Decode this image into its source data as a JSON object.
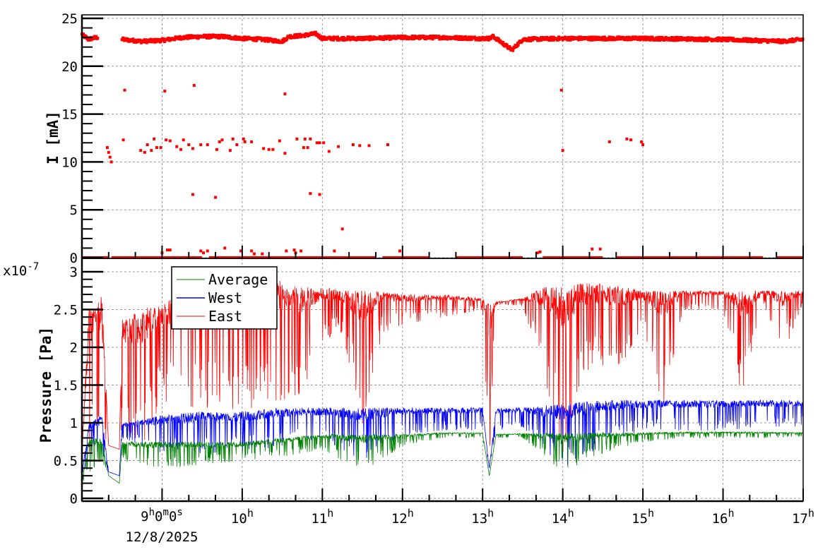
{
  "x_axis": {
    "range": [
      "8:00",
      "17:00"
    ],
    "first_label": {
      "h": "9",
      "m": "0",
      "s": "0",
      "h_unit": "h",
      "m_unit": "m",
      "s_unit": "s"
    },
    "date_label": "12/8/2025",
    "hour_labels": [
      "10",
      "11",
      "12",
      "13",
      "14",
      "15",
      "16",
      "17"
    ],
    "hour_unit": "h"
  },
  "chart_data": [
    {
      "type": "scatter",
      "ylabel": "I [mA]",
      "ylim": [
        0,
        25
      ],
      "yticks": [
        "0",
        "5",
        "10",
        "15",
        "20",
        "25"
      ],
      "grid": true,
      "color": "#ff0000",
      "main_band": [
        [
          "8:00",
          23.3
        ],
        [
          "8:05",
          22.8
        ],
        [
          "8:10",
          23.0
        ],
        [
          "8:12",
          23.0
        ],
        null,
        [
          "8:30",
          22.8
        ],
        [
          "8:45",
          22.6
        ],
        [
          "9:00",
          22.7
        ],
        [
          "9:15",
          23.0
        ],
        [
          "9:30",
          23.1
        ],
        [
          "9:45",
          23.1
        ],
        [
          "10:00",
          22.9
        ],
        [
          "10:15",
          22.8
        ],
        [
          "10:30",
          22.6
        ],
        [
          "10:35",
          23.1
        ],
        [
          "10:45",
          23.2
        ],
        [
          "10:55",
          23.4
        ],
        [
          "11:00",
          22.9
        ],
        [
          "11:30",
          22.9
        ],
        [
          "12:00",
          23.0
        ],
        [
          "12:30",
          23.0
        ],
        [
          "13:00",
          22.9
        ],
        [
          "13:05",
          22.9
        ],
        [
          "13:08",
          23.1
        ],
        [
          "13:15",
          22.4
        ],
        [
          "13:22",
          21.7
        ],
        [
          "13:30",
          22.8
        ],
        [
          "14:00",
          22.9
        ],
        [
          "15:00",
          22.9
        ],
        [
          "16:00",
          22.8
        ],
        [
          "16:45",
          22.6
        ],
        [
          "17:00",
          22.8
        ]
      ],
      "zero_segments": [
        [
          "8:00",
          "8:20"
        ],
        [
          "8:22",
          "9:30"
        ],
        [
          "9:35",
          "11:40"
        ],
        [
          "11:45",
          "12:20"
        ],
        [
          "12:40",
          "13:30"
        ],
        [
          "13:45",
          "14:30"
        ],
        [
          "14:40",
          "16:30"
        ],
        [
          "16:40",
          "17:00"
        ]
      ],
      "decay_segment": [
        [
          "8:19",
          11.5
        ],
        [
          "8:20",
          11.0
        ],
        [
          "8:21",
          10.5
        ],
        [
          "8:22",
          10.0
        ]
      ],
      "outliers": [
        [
          "8:32",
          17.5
        ],
        [
          "9:02",
          17.4
        ],
        [
          "9:24",
          18.0
        ],
        [
          "10:32",
          17.1
        ],
        [
          "13:59",
          17.5
        ],
        [
          "8:31",
          12.3
        ],
        [
          "8:44",
          11.2
        ],
        [
          "8:47",
          11.0
        ],
        [
          "8:49",
          11.8
        ],
        [
          "8:52",
          11.2
        ],
        [
          "8:54",
          12.4
        ],
        [
          "8:56",
          11.5
        ],
        [
          "8:59",
          11.5
        ],
        [
          "9:03",
          12.3
        ],
        [
          "9:06",
          12.2
        ],
        [
          "9:11",
          11.6
        ],
        [
          "9:14",
          11.3
        ],
        [
          "9:16",
          12.3
        ],
        [
          "9:20",
          11.8
        ],
        [
          "9:23",
          11.4
        ],
        [
          "9:29",
          11.8
        ],
        [
          "9:34",
          11.8
        ],
        [
          "9:41",
          11.3
        ],
        [
          "9:43",
          12.1
        ],
        [
          "9:45",
          12.3
        ],
        [
          "9:51",
          11.2
        ],
        [
          "9:53",
          12.4
        ],
        [
          "9:56",
          11.8
        ],
        [
          "10:01",
          12.4
        ],
        [
          "10:02",
          12.1
        ],
        [
          "10:07",
          12.1
        ],
        [
          "10:16",
          11.4
        ],
        [
          "10:20",
          11.3
        ],
        [
          "10:23",
          11.3
        ],
        [
          "10:28",
          12.2
        ],
        [
          "10:32",
          10.9
        ],
        [
          "10:41",
          12.4
        ],
        [
          "10:46",
          11.5
        ],
        [
          "10:47",
          12.4
        ],
        [
          "10:49",
          11.5
        ],
        [
          "10:51",
          12.4
        ],
        [
          "10:56",
          12.0
        ],
        [
          "10:58",
          12.0
        ],
        [
          "11:01",
          12.0
        ],
        [
          "11:05",
          11.1
        ],
        [
          "11:12",
          11.6
        ],
        [
          "11:23",
          11.8
        ],
        [
          "11:28",
          11.7
        ],
        [
          "11:35",
          11.7
        ],
        [
          "11:49",
          11.8
        ],
        [
          "14:00",
          11.2
        ],
        [
          "14:35",
          12.1
        ],
        [
          "14:48",
          12.4
        ],
        [
          "14:51",
          12.3
        ],
        [
          "14:59",
          12.1
        ],
        [
          "15:00",
          11.8
        ],
        [
          "9:23",
          6.6
        ],
        [
          "9:40",
          6.3
        ],
        [
          "10:51",
          6.7
        ],
        [
          "10:58",
          6.6
        ],
        [
          "11:15",
          3.0
        ],
        [
          "9:00",
          0.5
        ],
        [
          "9:04",
          0.8
        ],
        [
          "9:06",
          0.8
        ],
        [
          "9:29",
          0.7
        ],
        [
          "9:31",
          0.5
        ],
        [
          "9:34",
          0.7
        ],
        [
          "9:47",
          1.0
        ],
        [
          "9:59",
          0.7
        ],
        [
          "10:07",
          0.7
        ],
        [
          "10:09",
          0.4
        ],
        [
          "10:15",
          0.4
        ],
        [
          "10:33",
          0.7
        ],
        [
          "10:39",
          0.8
        ],
        [
          "10:40",
          0.5
        ],
        [
          "10:44",
          0.7
        ],
        [
          "11:09",
          0.7
        ],
        [
          "11:58",
          0.7
        ],
        [
          "13:41",
          0.5
        ],
        [
          "13:43",
          0.6
        ],
        [
          "14:22",
          0.9
        ],
        [
          "14:28",
          0.9
        ]
      ]
    },
    {
      "type": "line",
      "ylabel": "Pressure [Pa]",
      "y_exponent": {
        "base": "x10",
        "power": "-7"
      },
      "ylim": [
        0,
        3.1
      ],
      "yticks": [
        "0",
        "0.5",
        "1",
        "1.5",
        "2",
        "2.5",
        "3"
      ],
      "ytick_values": [
        0,
        0.5,
        1,
        1.5,
        2,
        2.5,
        3
      ],
      "grid": true,
      "legend_position": "top-left",
      "series": [
        {
          "name": "Average",
          "color": "#008000",
          "envelope": [
            [
              "8:00",
              0.2,
              0.2
            ],
            [
              "8:05",
              0.8,
              0.3
            ],
            [
              "8:15",
              0.8,
              0.5
            ],
            [
              "8:20",
              0.3,
              0.3
            ],
            [
              "8:28",
              0.2,
              0.2
            ],
            [
              "8:30",
              0.75,
              0.5
            ],
            [
              "9:00",
              0.75,
              0.4
            ],
            [
              "9:30",
              0.75,
              0.45
            ],
            [
              "10:00",
              0.75,
              0.5
            ],
            [
              "10:30",
              0.8,
              0.55
            ],
            [
              "11:00",
              0.85,
              0.65
            ],
            [
              "11:30",
              0.85,
              0.35
            ],
            [
              "12:00",
              0.85,
              0.7
            ],
            [
              "12:30",
              0.87,
              0.8
            ],
            [
              "13:00",
              0.87,
              0.8
            ],
            [
              "13:05",
              0.3,
              0.3
            ],
            [
              "13:10",
              0.85,
              0.8
            ],
            [
              "13:30",
              0.86,
              0.8
            ],
            [
              "14:00",
              0.87,
              0.35
            ],
            [
              "14:30",
              0.87,
              0.6
            ],
            [
              "15:00",
              0.87,
              0.75
            ],
            [
              "15:30",
              0.88,
              0.8
            ],
            [
              "16:00",
              0.88,
              0.8
            ],
            [
              "16:30",
              0.88,
              0.8
            ],
            [
              "17:00",
              0.87,
              0.82
            ]
          ]
        },
        {
          "name": "West",
          "color": "#0000ff",
          "envelope": [
            [
              "8:00",
              0.3,
              0.3
            ],
            [
              "8:05",
              1.0,
              0.5
            ],
            [
              "8:15",
              1.1,
              0.6
            ],
            [
              "8:20",
              0.35,
              0.35
            ],
            [
              "8:28",
              0.3,
              0.3
            ],
            [
              "8:30",
              1.0,
              0.8
            ],
            [
              "9:00",
              1.1,
              0.6
            ],
            [
              "9:30",
              1.15,
              0.6
            ],
            [
              "10:00",
              1.15,
              0.6
            ],
            [
              "10:30",
              1.2,
              0.7
            ],
            [
              "11:00",
              1.2,
              0.8
            ],
            [
              "11:30",
              1.2,
              0.5
            ],
            [
              "12:00",
              1.2,
              0.85
            ],
            [
              "12:30",
              1.2,
              0.9
            ],
            [
              "13:00",
              1.2,
              0.9
            ],
            [
              "13:05",
              0.4,
              0.4
            ],
            [
              "13:10",
              1.2,
              0.9
            ],
            [
              "13:30",
              1.2,
              0.95
            ],
            [
              "14:00",
              1.25,
              0.4
            ],
            [
              "14:30",
              1.3,
              0.7
            ],
            [
              "15:00",
              1.3,
              0.9
            ],
            [
              "15:30",
              1.3,
              0.9
            ],
            [
              "16:00",
              1.3,
              0.9
            ],
            [
              "16:30",
              1.3,
              0.95
            ],
            [
              "17:00",
              1.3,
              0.95
            ]
          ]
        },
        {
          "name": "East",
          "color": "#ff0000",
          "envelope": [
            [
              "8:00",
              0.6,
              0.6
            ],
            [
              "8:05",
              2.5,
              0.4
            ],
            [
              "8:15",
              2.7,
              0.6
            ],
            [
              "8:20",
              0.7,
              0.7
            ],
            [
              "8:28",
              0.65,
              0.65
            ],
            [
              "8:30",
              2.4,
              1.0
            ],
            [
              "8:45",
              2.5,
              0.7
            ],
            [
              "9:00",
              2.6,
              1.3
            ],
            [
              "9:15",
              2.7,
              1.2
            ],
            [
              "9:30",
              2.8,
              1.2
            ],
            [
              "9:45",
              2.8,
              1.2
            ],
            [
              "10:00",
              2.9,
              1.1
            ],
            [
              "10:15",
              2.9,
              1.3
            ],
            [
              "10:30",
              2.9,
              1.3
            ],
            [
              "10:45",
              2.8,
              1.4
            ],
            [
              "11:00",
              2.8,
              2.1
            ],
            [
              "11:15",
              2.75,
              2.2
            ],
            [
              "11:30",
              2.75,
              1.0
            ],
            [
              "11:45",
              2.75,
              2.2
            ],
            [
              "12:00",
              2.7,
              2.3
            ],
            [
              "12:30",
              2.7,
              2.4
            ],
            [
              "13:00",
              2.65,
              2.5
            ],
            [
              "13:05",
              2.6,
              0.5
            ],
            [
              "13:10",
              2.6,
              2.55
            ],
            [
              "13:30",
              2.65,
              2.55
            ],
            [
              "13:45",
              2.8,
              1.7
            ],
            [
              "14:00",
              2.8,
              0.6
            ],
            [
              "14:15",
              2.85,
              1.7
            ],
            [
              "14:30",
              2.85,
              1.7
            ],
            [
              "14:45",
              2.8,
              1.8
            ],
            [
              "15:00",
              2.75,
              2.3
            ],
            [
              "15:15",
              2.75,
              1.2
            ],
            [
              "15:30",
              2.75,
              2.5
            ],
            [
              "15:45",
              2.75,
              2.5
            ],
            [
              "16:00",
              2.75,
              2.5
            ],
            [
              "16:15",
              2.75,
              1.2
            ],
            [
              "16:30",
              2.75,
              2.6
            ],
            [
              "16:45",
              2.75,
              1.9
            ],
            [
              "17:00",
              2.75,
              2.6
            ]
          ]
        }
      ]
    }
  ]
}
